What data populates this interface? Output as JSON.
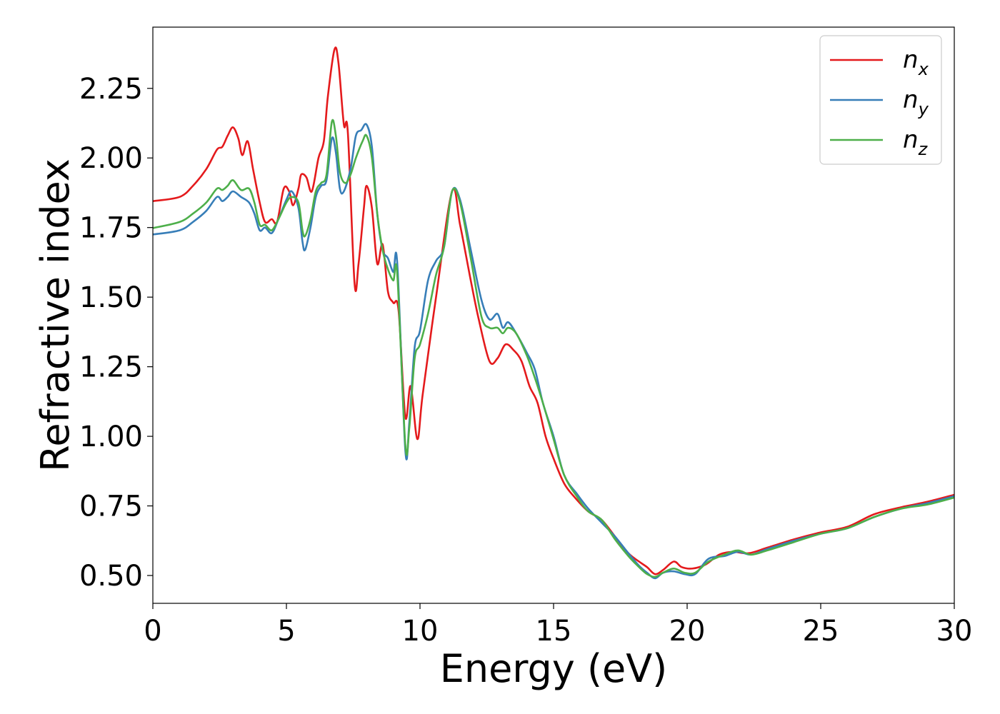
{
  "chart_data": {
    "type": "line",
    "xlabel": "Energy (eV)",
    "ylabel": "Refractive index",
    "xlim": [
      0,
      30
    ],
    "ylim": [
      0.4,
      2.47
    ],
    "x_ticks": [
      0,
      5,
      10,
      15,
      20,
      25,
      30
    ],
    "x_tick_labels": [
      "0",
      "5",
      "10",
      "15",
      "20",
      "25",
      "30"
    ],
    "y_ticks": [
      0.5,
      0.75,
      1.0,
      1.25,
      1.5,
      1.75,
      2.0,
      2.25
    ],
    "y_tick_labels": [
      "0.50",
      "0.75",
      "1.00",
      "1.25",
      "1.50",
      "1.75",
      "2.00",
      "2.25"
    ],
    "grid": false,
    "legend_position": "top-right",
    "series": [
      {
        "name": "n",
        "subscript": "x",
        "color": "#e41a1c",
        "points": [
          [
            0,
            1.845
          ],
          [
            1,
            1.86
          ],
          [
            1.5,
            1.9
          ],
          [
            2,
            1.96
          ],
          [
            2.4,
            2.03
          ],
          [
            2.6,
            2.04
          ],
          [
            2.8,
            2.08
          ],
          [
            3.0,
            2.11
          ],
          [
            3.2,
            2.07
          ],
          [
            3.35,
            2.01
          ],
          [
            3.55,
            2.06
          ],
          [
            3.75,
            1.96
          ],
          [
            4.0,
            1.84
          ],
          [
            4.2,
            1.77
          ],
          [
            4.45,
            1.78
          ],
          [
            4.65,
            1.77
          ],
          [
            4.9,
            1.89
          ],
          [
            5.1,
            1.88
          ],
          [
            5.25,
            1.83
          ],
          [
            5.45,
            1.89
          ],
          [
            5.55,
            1.94
          ],
          [
            5.75,
            1.93
          ],
          [
            5.95,
            1.88
          ],
          [
            6.2,
            2.0
          ],
          [
            6.4,
            2.06
          ],
          [
            6.55,
            2.22
          ],
          [
            6.8,
            2.39
          ],
          [
            6.95,
            2.34
          ],
          [
            7.15,
            2.12
          ],
          [
            7.3,
            2.09
          ],
          [
            7.55,
            1.55
          ],
          [
            7.7,
            1.62
          ],
          [
            7.9,
            1.82
          ],
          [
            8.0,
            1.9
          ],
          [
            8.2,
            1.82
          ],
          [
            8.4,
            1.62
          ],
          [
            8.6,
            1.69
          ],
          [
            8.8,
            1.52
          ],
          [
            9.0,
            1.48
          ],
          [
            9.2,
            1.45
          ],
          [
            9.45,
            1.07
          ],
          [
            9.65,
            1.18
          ],
          [
            9.9,
            0.99
          ],
          [
            10.1,
            1.15
          ],
          [
            10.6,
            1.5
          ],
          [
            11.2,
            1.88
          ],
          [
            11.5,
            1.76
          ],
          [
            11.9,
            1.56
          ],
          [
            12.2,
            1.42
          ],
          [
            12.6,
            1.27
          ],
          [
            12.9,
            1.28
          ],
          [
            13.2,
            1.33
          ],
          [
            13.5,
            1.31
          ],
          [
            13.8,
            1.27
          ],
          [
            14.1,
            1.18
          ],
          [
            14.4,
            1.12
          ],
          [
            14.7,
            1.0
          ],
          [
            15.0,
            0.92
          ],
          [
            15.4,
            0.83
          ],
          [
            15.8,
            0.78
          ],
          [
            16.3,
            0.73
          ],
          [
            16.8,
            0.7
          ],
          [
            17.3,
            0.64
          ],
          [
            17.8,
            0.58
          ],
          [
            18.2,
            0.55
          ],
          [
            18.5,
            0.53
          ],
          [
            18.8,
            0.505
          ],
          [
            19.1,
            0.52
          ],
          [
            19.5,
            0.55
          ],
          [
            19.8,
            0.53
          ],
          [
            20.2,
            0.525
          ],
          [
            20.7,
            0.54
          ],
          [
            21.2,
            0.575
          ],
          [
            21.7,
            0.585
          ],
          [
            22.3,
            0.58
          ],
          [
            23,
            0.6
          ],
          [
            24,
            0.63
          ],
          [
            25,
            0.655
          ],
          [
            26,
            0.675
          ],
          [
            27,
            0.72
          ],
          [
            28,
            0.745
          ],
          [
            29,
            0.765
          ],
          [
            30,
            0.79
          ]
        ]
      },
      {
        "name": "n",
        "subscript": "y",
        "color": "#377eb8",
        "points": [
          [
            0,
            1.725
          ],
          [
            1,
            1.74
          ],
          [
            1.5,
            1.77
          ],
          [
            2,
            1.81
          ],
          [
            2.4,
            1.86
          ],
          [
            2.6,
            1.845
          ],
          [
            2.8,
            1.86
          ],
          [
            3.0,
            1.88
          ],
          [
            3.3,
            1.86
          ],
          [
            3.6,
            1.84
          ],
          [
            3.8,
            1.8
          ],
          [
            4.0,
            1.74
          ],
          [
            4.2,
            1.75
          ],
          [
            4.45,
            1.73
          ],
          [
            4.7,
            1.78
          ],
          [
            5.0,
            1.85
          ],
          [
            5.2,
            1.88
          ],
          [
            5.45,
            1.82
          ],
          [
            5.6,
            1.7
          ],
          [
            5.7,
            1.67
          ],
          [
            5.9,
            1.75
          ],
          [
            6.1,
            1.86
          ],
          [
            6.3,
            1.9
          ],
          [
            6.5,
            1.92
          ],
          [
            6.7,
            2.07
          ],
          [
            6.85,
            2.02
          ],
          [
            7.0,
            1.89
          ],
          [
            7.15,
            1.88
          ],
          [
            7.4,
            1.96
          ],
          [
            7.6,
            2.08
          ],
          [
            7.8,
            2.1
          ],
          [
            8.0,
            2.12
          ],
          [
            8.2,
            2.04
          ],
          [
            8.4,
            1.8
          ],
          [
            8.6,
            1.67
          ],
          [
            8.8,
            1.64
          ],
          [
            9.0,
            1.59
          ],
          [
            9.15,
            1.62
          ],
          [
            9.45,
            0.95
          ],
          [
            9.6,
            1.05
          ],
          [
            9.8,
            1.32
          ],
          [
            10.0,
            1.38
          ],
          [
            10.3,
            1.56
          ],
          [
            10.6,
            1.63
          ],
          [
            10.9,
            1.68
          ],
          [
            11.2,
            1.88
          ],
          [
            11.5,
            1.85
          ],
          [
            11.9,
            1.67
          ],
          [
            12.3,
            1.49
          ],
          [
            12.6,
            1.42
          ],
          [
            12.9,
            1.44
          ],
          [
            13.1,
            1.39
          ],
          [
            13.3,
            1.41
          ],
          [
            13.6,
            1.37
          ],
          [
            14.0,
            1.3
          ],
          [
            14.3,
            1.24
          ],
          [
            14.6,
            1.12
          ],
          [
            15.0,
            1.0
          ],
          [
            15.4,
            0.86
          ],
          [
            15.9,
            0.79
          ],
          [
            16.3,
            0.74
          ],
          [
            16.8,
            0.69
          ],
          [
            17.3,
            0.64
          ],
          [
            17.8,
            0.58
          ],
          [
            18.2,
            0.535
          ],
          [
            18.5,
            0.51
          ],
          [
            18.8,
            0.49
          ],
          [
            19.1,
            0.51
          ],
          [
            19.5,
            0.515
          ],
          [
            19.9,
            0.505
          ],
          [
            20.3,
            0.505
          ],
          [
            20.8,
            0.56
          ],
          [
            21.4,
            0.57
          ],
          [
            21.9,
            0.585
          ],
          [
            22.4,
            0.575
          ],
          [
            23,
            0.595
          ],
          [
            24,
            0.625
          ],
          [
            25,
            0.65
          ],
          [
            26,
            0.67
          ],
          [
            27,
            0.71
          ],
          [
            28,
            0.74
          ],
          [
            29,
            0.76
          ],
          [
            30,
            0.785
          ]
        ]
      },
      {
        "name": "n",
        "subscript": "z",
        "color": "#4daf4a",
        "points": [
          [
            0,
            1.748
          ],
          [
            1,
            1.77
          ],
          [
            1.5,
            1.8
          ],
          [
            2,
            1.84
          ],
          [
            2.4,
            1.89
          ],
          [
            2.6,
            1.885
          ],
          [
            2.8,
            1.9
          ],
          [
            3.0,
            1.92
          ],
          [
            3.3,
            1.885
          ],
          [
            3.6,
            1.89
          ],
          [
            3.8,
            1.84
          ],
          [
            4.0,
            1.76
          ],
          [
            4.2,
            1.76
          ],
          [
            4.45,
            1.74
          ],
          [
            4.7,
            1.78
          ],
          [
            5.0,
            1.84
          ],
          [
            5.2,
            1.86
          ],
          [
            5.45,
            1.84
          ],
          [
            5.6,
            1.74
          ],
          [
            5.7,
            1.72
          ],
          [
            5.9,
            1.78
          ],
          [
            6.1,
            1.88
          ],
          [
            6.3,
            1.91
          ],
          [
            6.5,
            1.94
          ],
          [
            6.7,
            2.13
          ],
          [
            6.85,
            2.08
          ],
          [
            7.0,
            1.95
          ],
          [
            7.2,
            1.91
          ],
          [
            7.4,
            1.94
          ],
          [
            7.6,
            2.0
          ],
          [
            7.85,
            2.06
          ],
          [
            8.0,
            2.08
          ],
          [
            8.2,
            2.0
          ],
          [
            8.4,
            1.8
          ],
          [
            8.6,
            1.67
          ],
          [
            8.8,
            1.6
          ],
          [
            9.0,
            1.56
          ],
          [
            9.15,
            1.58
          ],
          [
            9.45,
            0.97
          ],
          [
            9.6,
            1.03
          ],
          [
            9.8,
            1.28
          ],
          [
            10.0,
            1.33
          ],
          [
            10.3,
            1.44
          ],
          [
            10.6,
            1.58
          ],
          [
            10.9,
            1.68
          ],
          [
            11.2,
            1.88
          ],
          [
            11.5,
            1.84
          ],
          [
            11.9,
            1.64
          ],
          [
            12.3,
            1.43
          ],
          [
            12.6,
            1.39
          ],
          [
            12.9,
            1.39
          ],
          [
            13.1,
            1.37
          ],
          [
            13.3,
            1.39
          ],
          [
            13.6,
            1.37
          ],
          [
            14.0,
            1.29
          ],
          [
            14.3,
            1.21
          ],
          [
            14.6,
            1.12
          ],
          [
            15.0,
            0.99
          ],
          [
            15.4,
            0.86
          ],
          [
            15.9,
            0.78
          ],
          [
            16.3,
            0.73
          ],
          [
            16.8,
            0.7
          ],
          [
            17.3,
            0.63
          ],
          [
            17.8,
            0.57
          ],
          [
            18.2,
            0.53
          ],
          [
            18.5,
            0.505
          ],
          [
            18.8,
            0.495
          ],
          [
            19.1,
            0.51
          ],
          [
            19.5,
            0.525
          ],
          [
            19.9,
            0.51
          ],
          [
            20.3,
            0.51
          ],
          [
            20.8,
            0.55
          ],
          [
            21.4,
            0.575
          ],
          [
            21.9,
            0.59
          ],
          [
            22.4,
            0.575
          ],
          [
            23,
            0.59
          ],
          [
            24,
            0.62
          ],
          [
            25,
            0.65
          ],
          [
            26,
            0.67
          ],
          [
            27,
            0.71
          ],
          [
            28,
            0.74
          ],
          [
            29,
            0.755
          ],
          [
            30,
            0.78
          ]
        ]
      }
    ]
  }
}
